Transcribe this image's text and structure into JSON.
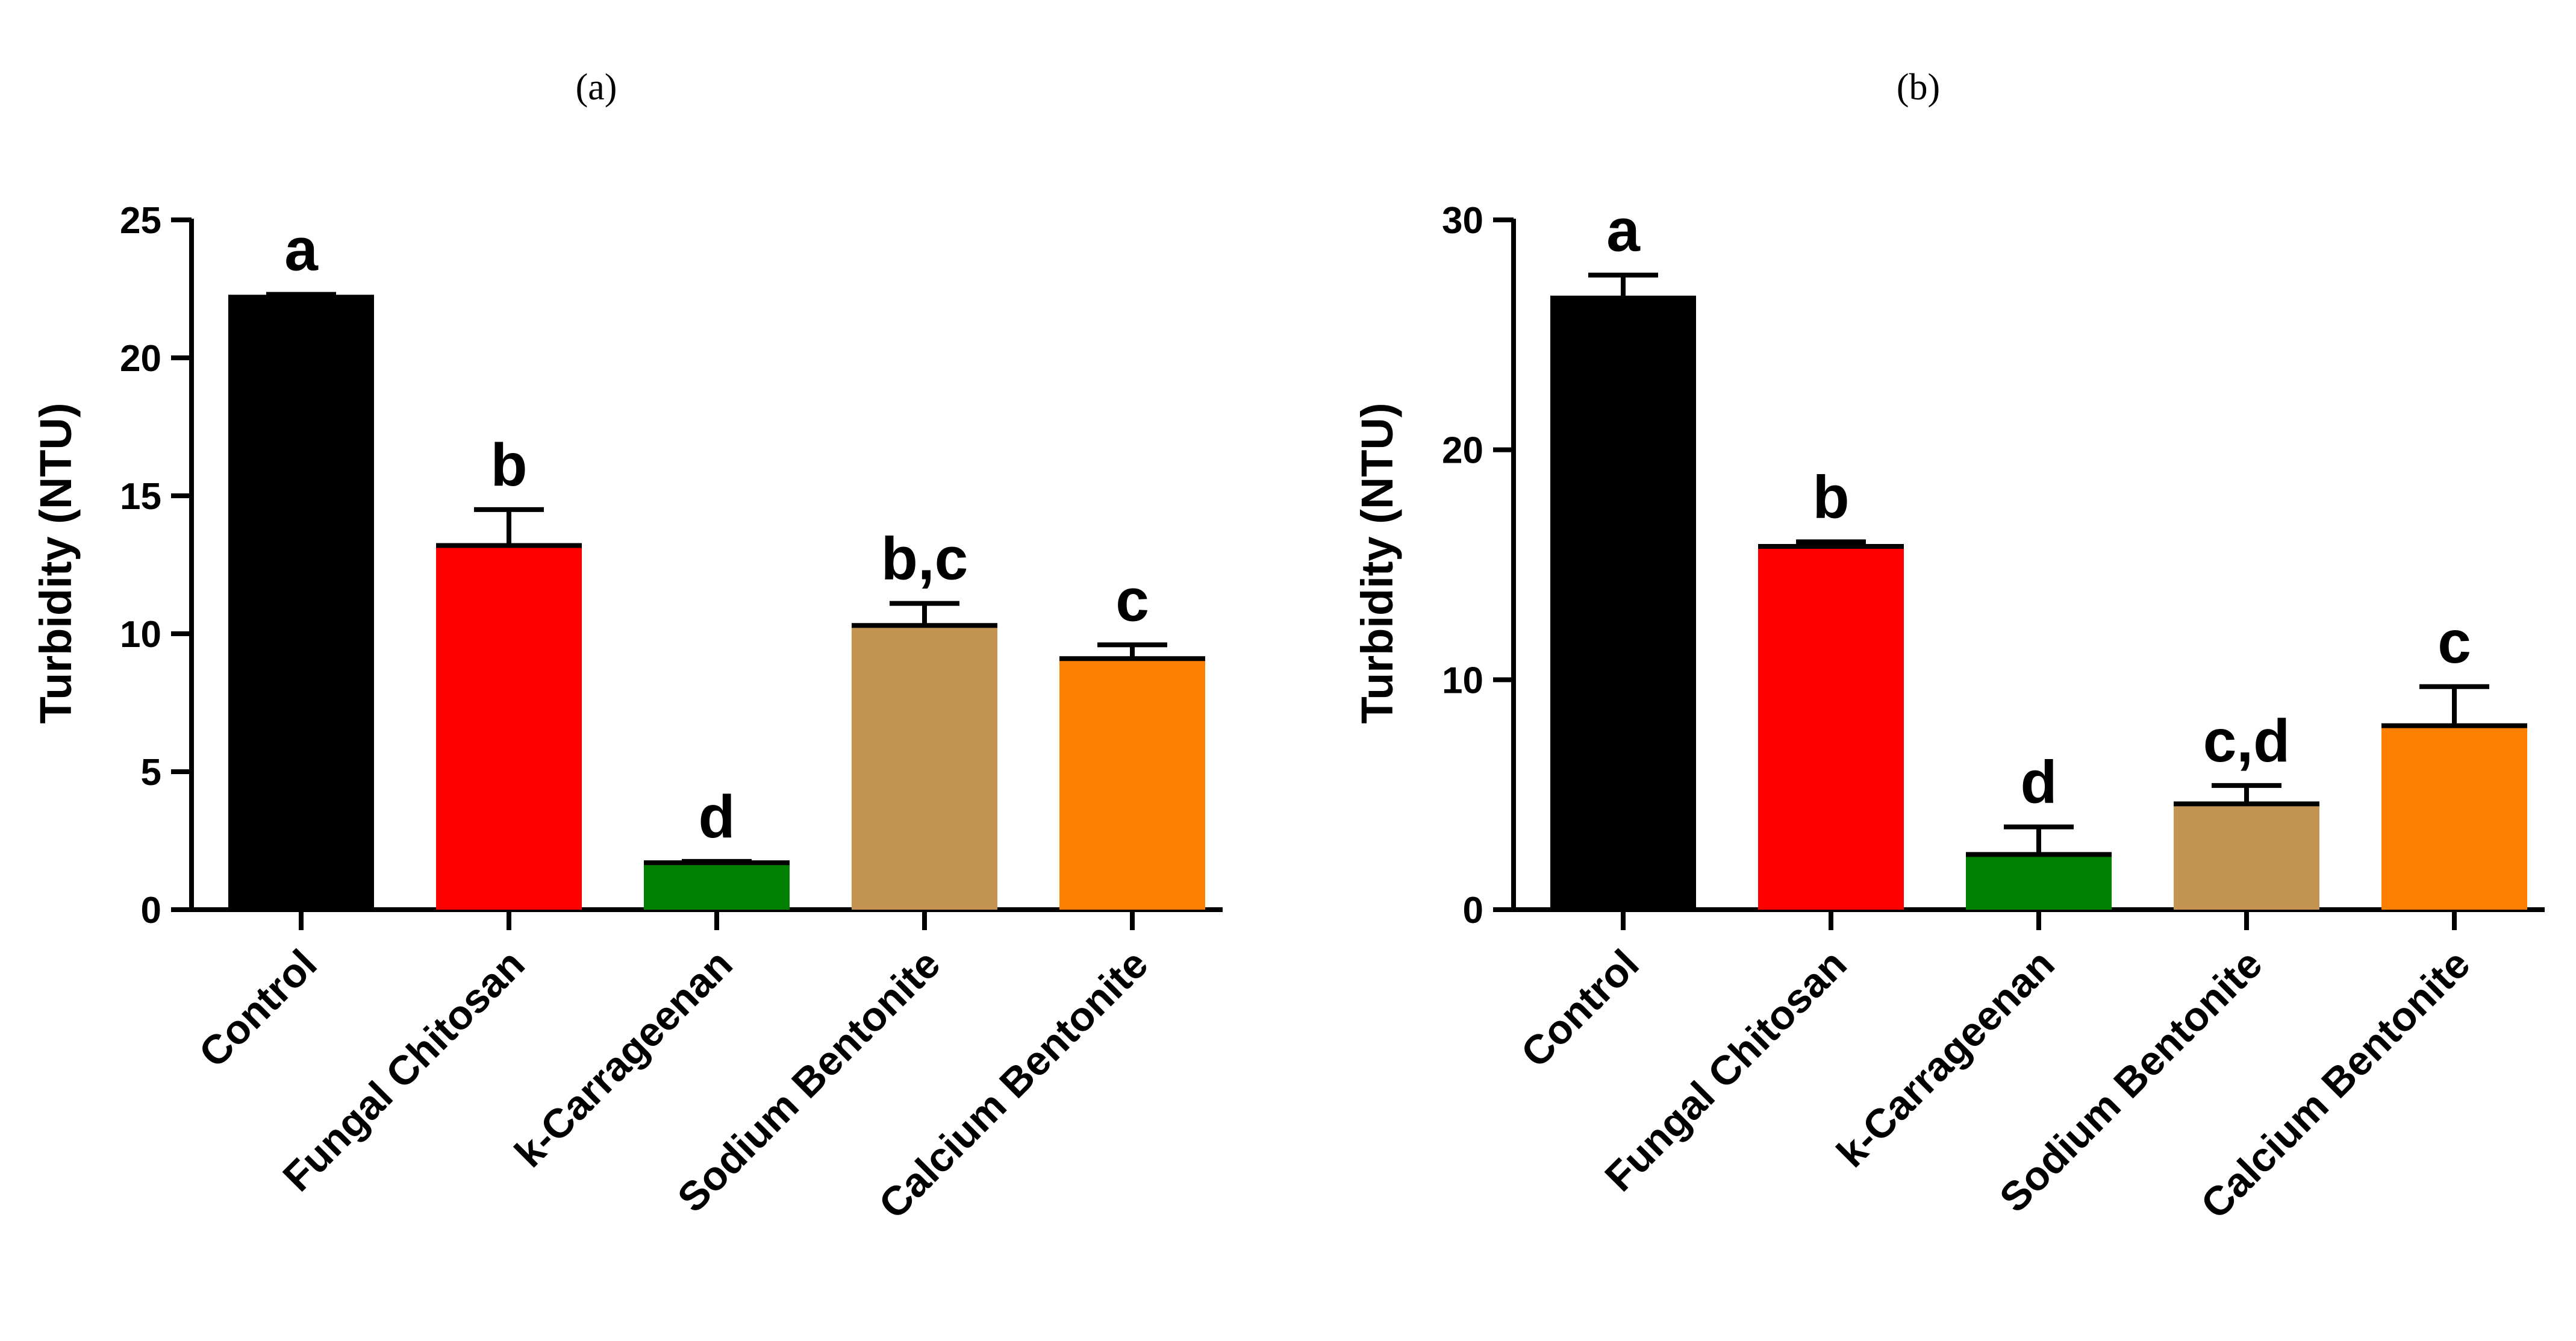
{
  "chart_data": [
    {
      "type": "bar",
      "panel_label": "(a)",
      "ylabel": "Turbidity (NTU)",
      "xlabel": "",
      "ylim": [
        0,
        25
      ],
      "yticks": [
        0,
        5,
        10,
        15,
        20,
        25
      ],
      "categories": [
        "Control",
        "Fungal Chitosan",
        "k-Carrageenan",
        "Sodium Bentonite",
        "Calcium Bentonite"
      ],
      "values": [
        22.2,
        13.2,
        1.7,
        10.3,
        9.1
      ],
      "errors": [
        0.1,
        1.3,
        0.05,
        0.8,
        0.5
      ],
      "significance": [
        "a",
        "b",
        "d",
        "b,c",
        "c"
      ],
      "colors": [
        "#000000",
        "#ff0000",
        "#008000",
        "#c49452",
        "#ff8000"
      ]
    },
    {
      "type": "bar",
      "panel_label": "(b)",
      "ylabel": "Turbidity (NTU)",
      "xlabel": "",
      "ylim": [
        0,
        30
      ],
      "yticks": [
        0,
        10,
        20,
        30
      ],
      "categories": [
        "Control",
        "Fungal Chitosan",
        "k-Carrageenan",
        "Sodium Bentonite",
        "Calcium Bentonite"
      ],
      "values": [
        26.6,
        15.8,
        2.4,
        4.6,
        8.0
      ],
      "errors": [
        1.0,
        0.2,
        1.2,
        0.8,
        1.7
      ],
      "significance": [
        "a",
        "b",
        "d",
        "c,d",
        "c"
      ],
      "colors": [
        "#000000",
        "#ff0000",
        "#008000",
        "#c49452",
        "#ff8000"
      ]
    }
  ]
}
